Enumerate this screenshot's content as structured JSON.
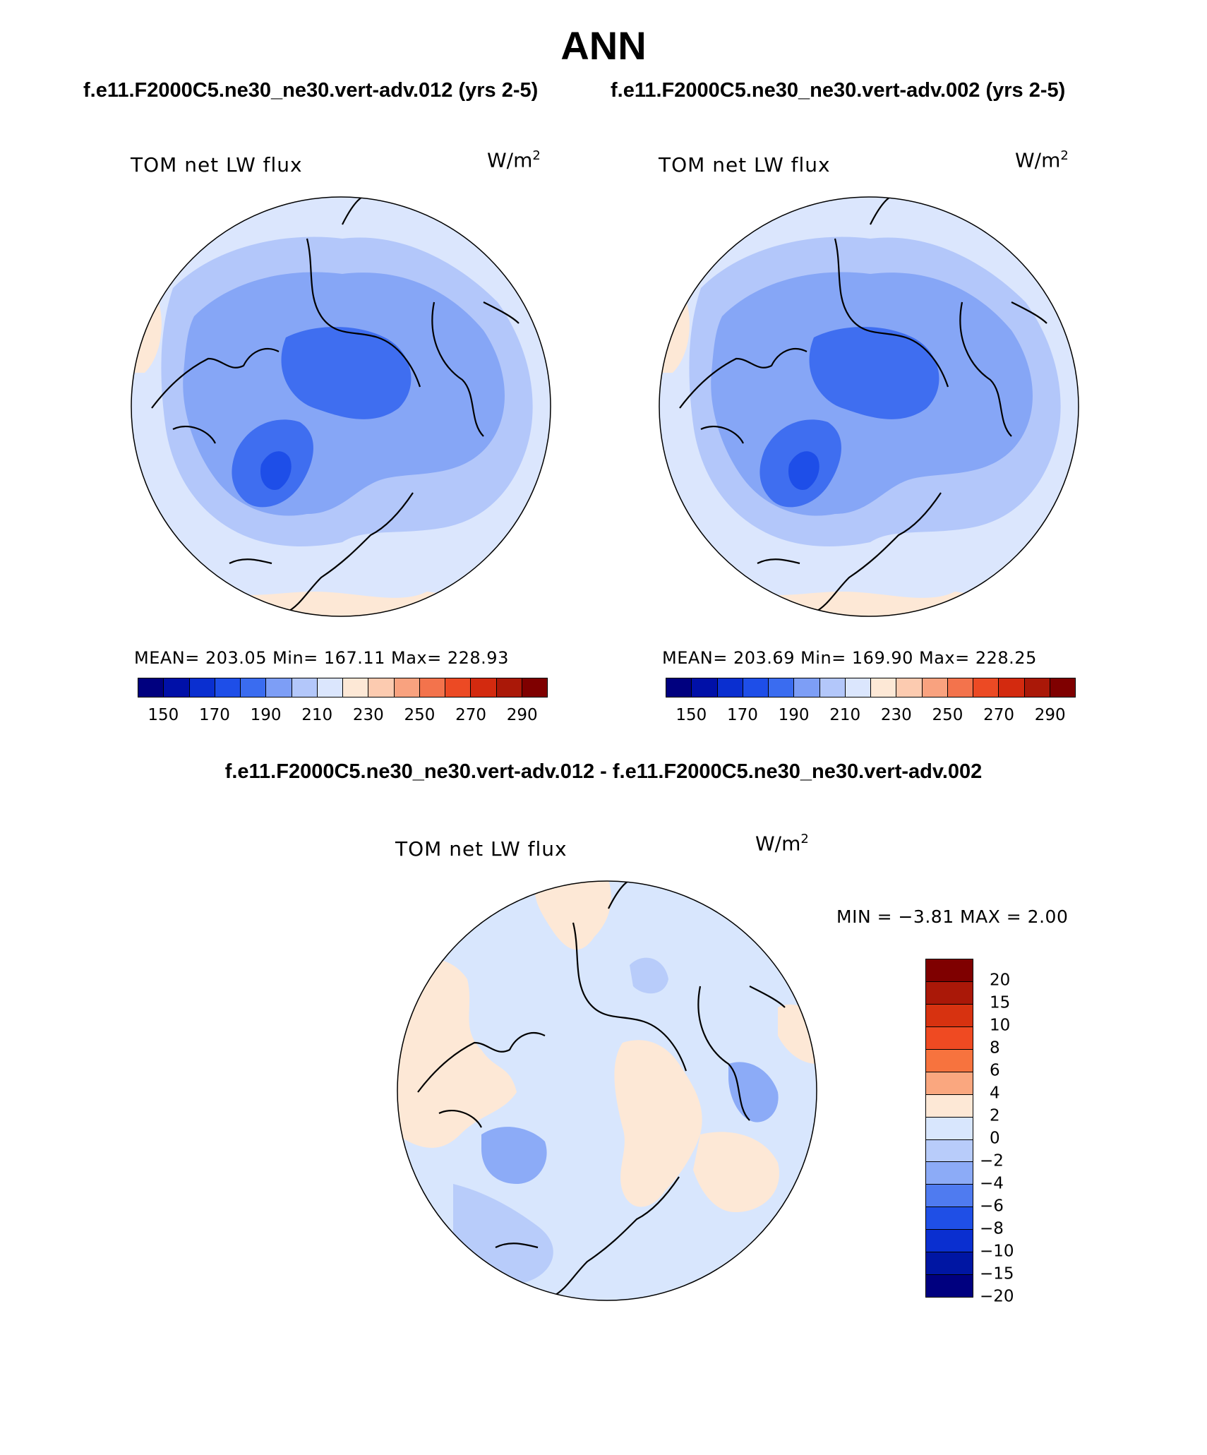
{
  "page_title": "ANN",
  "subtitles": {
    "case_a": "f.e11.F2000C5.ne30_ne30.vert-adv.012 (yrs 2-5)",
    "case_b": "f.e11.F2000C5.ne30_ne30.vert-adv.002 (yrs 2-5)",
    "diff": "f.e11.F2000C5.ne30_ne30.vert-adv.012 - f.e11.F2000C5.ne30_ne30.vert-adv.002"
  },
  "panels": {
    "left": {
      "variable": "TOM net LW flux",
      "units_base": "W/m",
      "units_exp": "2",
      "stats": "MEAN= 203.05   Min= 167.11   Max= 228.93",
      "colorbar_ticks": [
        "150",
        "170",
        "190",
        "210",
        "230",
        "250",
        "270",
        "290"
      ]
    },
    "right": {
      "variable": "TOM net LW flux",
      "units_base": "W/m",
      "units_exp": "2",
      "stats": "MEAN= 203.69   Min= 169.90   Max= 228.25",
      "colorbar_ticks": [
        "150",
        "170",
        "190",
        "210",
        "230",
        "250",
        "270",
        "290"
      ]
    },
    "diff": {
      "variable": "TOM net LW flux",
      "units_base": "W/m",
      "units_exp": "2",
      "stats": "MIN =   −3.81  MAX =    2.00",
      "colorbar_ticks": [
        "20",
        "15",
        "10",
        "8",
        "6",
        "4",
        "2",
        "0",
        "−2",
        "−4",
        "−6",
        "−8",
        "−10",
        "−15",
        "−20"
      ]
    }
  },
  "colors": {
    "abs_scale": [
      "#00007f",
      "#0010a8",
      "#0a2fd0",
      "#1e4ee8",
      "#3a6cf0",
      "#7d9ef6",
      "#b3c7fa",
      "#dbe6fd",
      "#fde8d6",
      "#fccbb0",
      "#f9a27f",
      "#f3734c",
      "#ec4a24",
      "#d32a0f",
      "#aa1808",
      "#7f0000"
    ],
    "diff_scale": [
      "#7f0000",
      "#aa1808",
      "#d73210",
      "#ef4a22",
      "#f7733e",
      "#faa77f",
      "#fde8d6",
      "#d8e6fd",
      "#b8ccfa",
      "#8cabf7",
      "#4f7bf0",
      "#1f4fe6",
      "#0a2fd0",
      "#0016a3",
      "#00007f"
    ],
    "ocean_light": "#dbe6fd",
    "mid_blue": "#b3c7fa",
    "blue": "#86a6f6",
    "deep_blue": "#3f6ef0",
    "peach": "#fde8d6"
  }
}
